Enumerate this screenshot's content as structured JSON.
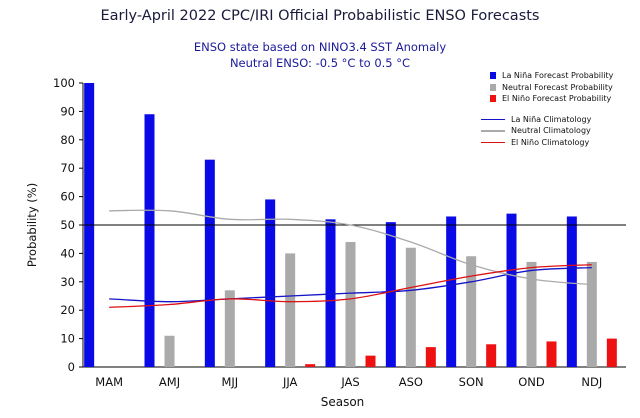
{
  "chart_data": {
    "type": "bar",
    "title": "Early-April 2022 CPC/IRI Official Probabilistic ENSO Forecasts",
    "subtitle_lines": [
      "ENSO state based on NINO3.4 SST Anomaly",
      "Neutral ENSO: -0.5 °C to 0.5 °C"
    ],
    "xlabel": "Season",
    "ylabel": "Probability (%)",
    "ylim": [
      0,
      100
    ],
    "yticks": [
      0,
      10,
      20,
      30,
      40,
      50,
      60,
      70,
      80,
      90,
      100
    ],
    "reference_line": 50,
    "categories": [
      "MAM",
      "AMJ",
      "MJJ",
      "JJA",
      "JAS",
      "ASO",
      "SON",
      "OND",
      "NDJ"
    ],
    "series": [
      {
        "name": "La Niña Forecast Probability",
        "kind": "bar",
        "color": "#0a0ae6",
        "values": [
          100,
          89,
          73,
          59,
          52,
          51,
          53,
          54,
          53
        ]
      },
      {
        "name": "Neutral Forecast Probability",
        "kind": "bar",
        "color": "#aaaaaa",
        "values": [
          0,
          11,
          27,
          40,
          44,
          42,
          39,
          37,
          37
        ]
      },
      {
        "name": "El Niño Forecast Probability",
        "kind": "bar",
        "color": "#ee1111",
        "values": [
          0,
          0,
          0,
          1,
          4,
          7,
          8,
          9,
          10
        ]
      },
      {
        "name": "La Niña Climatology",
        "kind": "line",
        "color": "#1515c8",
        "values": [
          24,
          23,
          24,
          25,
          26,
          27,
          30,
          34,
          35
        ]
      },
      {
        "name": "Neutral Climatology",
        "kind": "line",
        "color": "#aaaaaa",
        "values": [
          55,
          55,
          52,
          52,
          50,
          44,
          36,
          31,
          29
        ]
      },
      {
        "name": "El Niño Climatology",
        "kind": "line",
        "color": "#dd1111",
        "values": [
          21,
          22,
          24,
          23,
          24,
          28,
          32,
          35,
          36
        ]
      }
    ],
    "legend_position": "top-right",
    "grid": false
  }
}
